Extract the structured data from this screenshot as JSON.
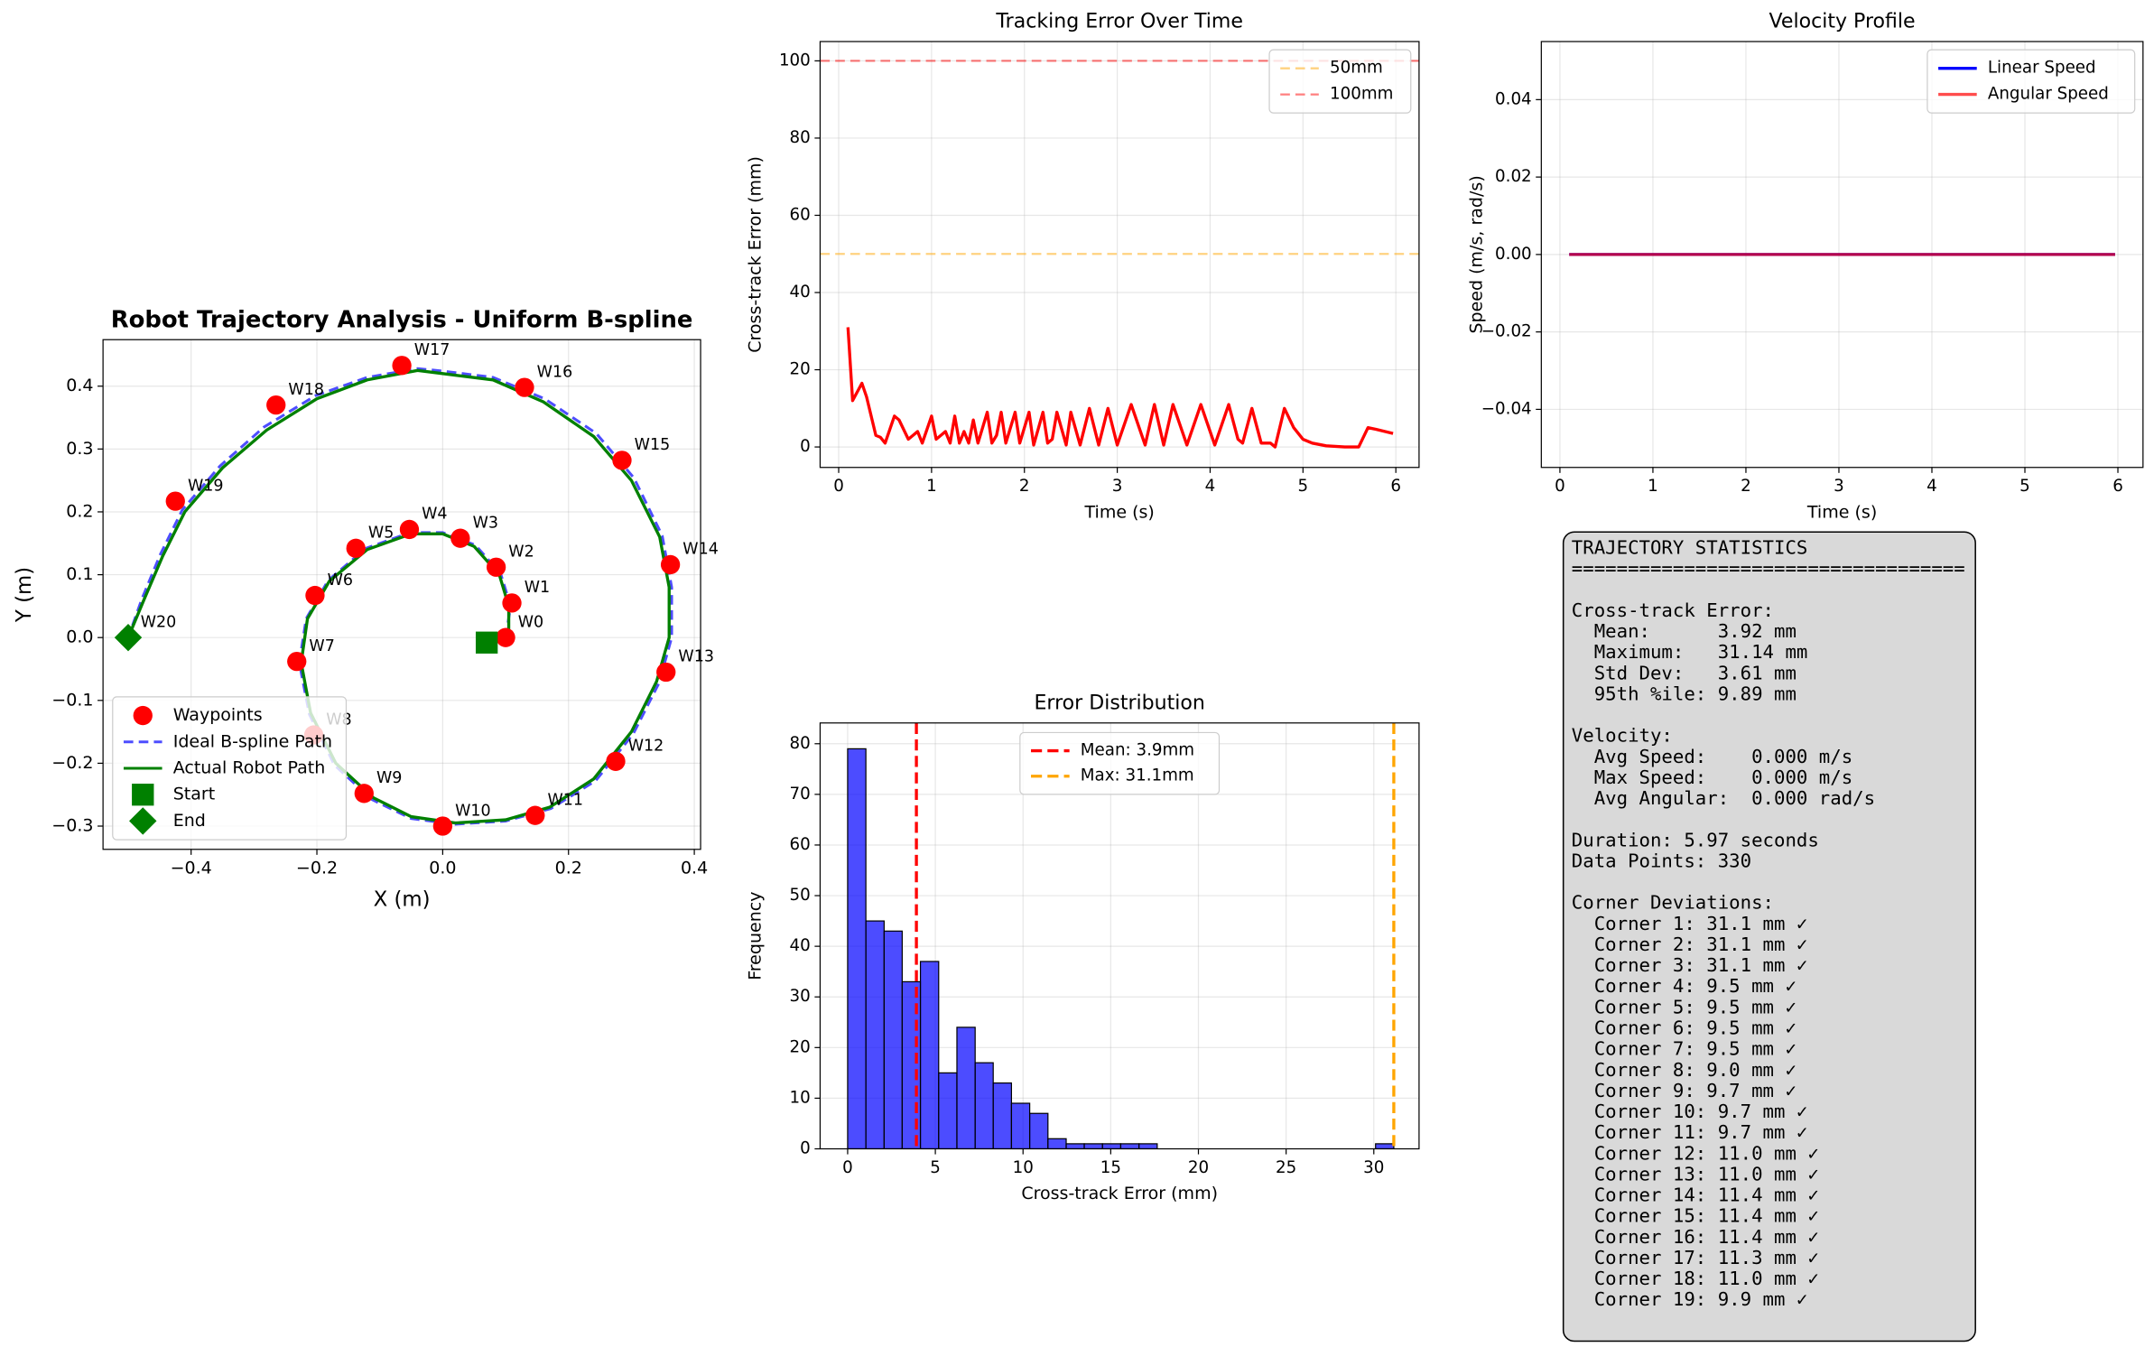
{
  "chart_data": [
    {
      "type": "scatter",
      "title": "Robot Trajectory Analysis - Uniform B-spline",
      "xlabel": "X (m)",
      "ylabel": "Y (m)",
      "xlim": [
        -0.54,
        0.41
      ],
      "ylim": [
        -0.337,
        0.474
      ],
      "xticks": [
        {
          "value": -0.4,
          "label": "−0.4"
        },
        {
          "value": -0.2,
          "label": "−0.2"
        },
        {
          "value": 0,
          "label": "0.0"
        },
        {
          "value": 0.2,
          "label": "0.2"
        },
        {
          "value": 0.4,
          "label": "0.4"
        }
      ],
      "yticks": [
        {
          "value": -0.3,
          "label": "−0.3"
        },
        {
          "value": -0.2,
          "label": "−0.2"
        },
        {
          "value": -0.1,
          "label": "−0.1"
        },
        {
          "value": 0,
          "label": "0.0"
        },
        {
          "value": 0.1,
          "label": "0.1"
        },
        {
          "value": 0.2,
          "label": "0.2"
        },
        {
          "value": 0.3,
          "label": "0.3"
        },
        {
          "value": 0.4,
          "label": "0.4"
        }
      ],
      "grid": true,
      "legend": "lower left",
      "series": [
        {
          "name": "Ideal B-spline Path",
          "kind": "line",
          "color": "#4d4dff",
          "linestyle": "dashed",
          "x": [
            0.1,
            0.108,
            0.092,
            0.052,
            0.0,
            -0.052,
            -0.122,
            -0.182,
            -0.217,
            -0.228,
            -0.212,
            -0.172,
            -0.112,
            -0.05,
            0.02,
            0.1,
            0.172,
            0.243,
            0.303,
            0.344,
            0.364,
            0.364,
            0.349,
            0.304,
            0.244,
            0.162,
            0.08,
            0.0,
            -0.04,
            -0.12,
            -0.202,
            -0.284,
            -0.354,
            -0.414,
            -0.449,
            -0.478,
            -0.5
          ],
          "y": [
            0.0,
            0.05,
            0.102,
            0.147,
            0.167,
            0.167,
            0.142,
            0.091,
            0.03,
            -0.04,
            -0.122,
            -0.203,
            -0.258,
            -0.288,
            -0.297,
            -0.292,
            -0.272,
            -0.228,
            -0.153,
            -0.072,
            0.0,
            0.08,
            0.162,
            0.254,
            0.325,
            0.38,
            0.414,
            0.424,
            0.428,
            0.414,
            0.385,
            0.335,
            0.273,
            0.203,
            0.132,
            0.062,
            0.0
          ]
        },
        {
          "name": "Actual Robot Path",
          "kind": "line",
          "color": "#008000",
          "linestyle": "solid",
          "x": [
            0.105,
            0.105,
            0.09,
            0.05,
            0.0,
            -0.05,
            -0.12,
            -0.18,
            -0.215,
            -0.225,
            -0.21,
            -0.17,
            -0.11,
            -0.05,
            0.02,
            0.1,
            0.17,
            0.24,
            0.3,
            0.34,
            0.36,
            0.36,
            0.345,
            0.3,
            0.24,
            0.16,
            0.08,
            0.0,
            -0.04,
            -0.12,
            -0.2,
            -0.28,
            -0.35,
            -0.41,
            -0.445,
            -0.475,
            -0.5
          ],
          "y": [
            0.0,
            0.05,
            0.1,
            0.145,
            0.165,
            0.165,
            0.14,
            0.09,
            0.03,
            -0.04,
            -0.12,
            -0.2,
            -0.255,
            -0.285,
            -0.295,
            -0.29,
            -0.27,
            -0.225,
            -0.15,
            -0.07,
            0.0,
            0.08,
            0.16,
            0.25,
            0.32,
            0.375,
            0.41,
            0.42,
            0.425,
            0.41,
            0.38,
            0.33,
            0.27,
            0.2,
            0.13,
            0.06,
            0.0
          ]
        },
        {
          "name": "Waypoints",
          "kind": "points",
          "marker": "circle",
          "color": "#ff0000",
          "x": [
            0.1,
            0.11,
            0.085,
            0.028,
            -0.053,
            -0.138,
            -0.203,
            -0.232,
            -0.205,
            -0.125,
            0.0,
            0.147,
            0.275,
            0.355,
            0.362,
            0.285,
            0.13,
            -0.065,
            -0.265,
            -0.425,
            -0.5
          ],
          "y": [
            0.0,
            0.055,
            0.112,
            0.158,
            0.172,
            0.142,
            0.067,
            -0.038,
            -0.155,
            -0.248,
            -0.3,
            -0.283,
            -0.197,
            -0.055,
            0.116,
            0.282,
            0.398,
            0.433,
            0.37,
            0.217,
            0.0
          ],
          "labels": [
            "W0",
            "W1",
            "W2",
            "W3",
            "W4",
            "W5",
            "W6",
            "W7",
            "W8",
            "W9",
            "W10",
            "W11",
            "W12",
            "W13",
            "W14",
            "W15",
            "W16",
            "W17",
            "W18",
            "W19",
            "W20"
          ]
        },
        {
          "name": "Start",
          "kind": "points",
          "marker": "square",
          "color": "#008000",
          "x": [
            0.07
          ],
          "y": [
            -0.008
          ]
        },
        {
          "name": "End",
          "kind": "points",
          "marker": "diamond",
          "color": "#008000",
          "x": [
            -0.5
          ],
          "y": [
            0.0
          ]
        }
      ],
      "legend_order": [
        2,
        0,
        1,
        3,
        4
      ]
    },
    {
      "type": "line",
      "title": "Tracking Error Over Time",
      "xlabel": "Time (s)",
      "ylabel": "Cross-track Error (mm)",
      "xlim": [
        -0.2,
        6.25
      ],
      "ylim": [
        -5.3,
        105
      ],
      "xticks": [
        0,
        1,
        2,
        3,
        4,
        5,
        6
      ],
      "yticks": [
        0,
        20,
        40,
        60,
        80,
        100
      ],
      "grid": true,
      "legend": "upper right",
      "color": "#ff0000",
      "x": [
        0.1,
        0.15,
        0.25,
        0.3,
        0.4,
        0.45,
        0.5,
        0.6,
        0.65,
        0.75,
        0.8,
        0.85,
        0.9,
        1.0,
        1.05,
        1.1,
        1.15,
        1.2,
        1.25,
        1.3,
        1.35,
        1.4,
        1.45,
        1.5,
        1.6,
        1.65,
        1.7,
        1.75,
        1.8,
        1.9,
        1.95,
        2.05,
        2.1,
        2.2,
        2.25,
        2.3,
        2.35,
        2.45,
        2.5,
        2.6,
        2.7,
        2.8,
        2.9,
        3.0,
        3.15,
        3.3,
        3.4,
        3.5,
        3.6,
        3.75,
        3.9,
        4.05,
        4.2,
        4.3,
        4.35,
        4.45,
        4.55,
        4.65,
        4.7,
        4.8,
        4.9,
        5.0,
        5.1,
        5.25,
        5.45,
        5.6,
        5.7,
        5.8,
        5.97
      ],
      "values": [
        31,
        12,
        16.5,
        13,
        3,
        2.5,
        1,
        8,
        7,
        2,
        3,
        4,
        1,
        8,
        2,
        3,
        4,
        1,
        8,
        1,
        4,
        1,
        7,
        1,
        9,
        1,
        3,
        9,
        1,
        9,
        1,
        9,
        0.5,
        9,
        1,
        2,
        9,
        0.5,
        9,
        0.5,
        10,
        0.5,
        10,
        0.5,
        11,
        0.5,
        11,
        0.5,
        11,
        0.5,
        11,
        0.5,
        11,
        2,
        1,
        10,
        1,
        1,
        0,
        10,
        5,
        2,
        1,
        0.3,
        0,
        0,
        5,
        4.5,
        3.5
      ],
      "reference_lines": [
        {
          "value": 50,
          "label": "50mm",
          "color": "#ffa500",
          "alpha": 0.5
        },
        {
          "value": 100,
          "label": "100mm",
          "color": "#ff0000",
          "alpha": 0.5
        }
      ]
    },
    {
      "type": "line",
      "title": "Velocity Profile",
      "xlabel": "Time (s)",
      "ylabel": "Speed (m/s, rad/s)",
      "xlim": [
        -0.2,
        6.27
      ],
      "ylim": [
        -0.055,
        0.055
      ],
      "xticks": [
        0,
        1,
        2,
        3,
        4,
        5,
        6
      ],
      "yticks": [
        {
          "value": -0.04,
          "label": "−0.04"
        },
        {
          "value": -0.02,
          "label": "−0.02"
        },
        {
          "value": 0,
          "label": "0.00"
        },
        {
          "value": 0.02,
          "label": "0.02"
        },
        {
          "value": 0.04,
          "label": "0.04"
        }
      ],
      "grid": true,
      "legend": "upper right",
      "series": [
        {
          "name": "Linear Speed",
          "color": "#0000ff",
          "alpha": 1,
          "x": [
            0.1,
            5.97
          ],
          "values": [
            0,
            0
          ]
        },
        {
          "name": "Angular Speed",
          "color": "#ff0000",
          "alpha": 0.7,
          "x": [
            0.1,
            5.97
          ],
          "values": [
            0,
            0
          ]
        }
      ]
    },
    {
      "type": "histogram",
      "title": "Error Distribution",
      "xlabel": "Cross-track Error (mm)",
      "ylabel": "Frequency",
      "xlim": [
        -1.57,
        32.58
      ],
      "ylim": [
        0,
        84.1
      ],
      "xticks": [
        0,
        5,
        10,
        15,
        20,
        25,
        30
      ],
      "yticks": [
        0,
        10,
        20,
        30,
        40,
        50,
        60,
        70,
        80
      ],
      "grid": true,
      "legend": "upper center",
      "color": "#0000ff",
      "alpha": 0.7,
      "edgecolor": "#000000",
      "bins": [
        0,
        1.04,
        2.08,
        3.11,
        4.15,
        5.19,
        6.23,
        7.27,
        8.3,
        9.34,
        10.38,
        11.42,
        12.46,
        13.49,
        14.53,
        15.57,
        16.61,
        17.65,
        18.68,
        19.72,
        20.76,
        21.8,
        22.84,
        23.87,
        24.91,
        25.95,
        26.99,
        28.03,
        29.06,
        30.1,
        31.14
      ],
      "counts": [
        79,
        45,
        43,
        33,
        37,
        15,
        24,
        17,
        13,
        9,
        7,
        2,
        1,
        1,
        1,
        1,
        1,
        0,
        0,
        0,
        0,
        0,
        0,
        0,
        0,
        0,
        0,
        0,
        0,
        1
      ],
      "reference_lines": [
        {
          "value": 3.92,
          "label": "Mean: 3.9mm",
          "color": "#ff0000",
          "alpha": 1
        },
        {
          "value": 31.14,
          "label": "Max: 31.1mm",
          "color": "#ffa500",
          "alpha": 1
        }
      ]
    }
  ],
  "stats_box": {
    "title": "TRAJECTORY STATISTICS",
    "rule": "===================================",
    "sections": [
      [
        "Cross-track Error:",
        "  Mean:      3.92 mm",
        "  Maximum:   31.14 mm",
        "  Std Dev:   3.61 mm",
        "  95th %ile: 9.89 mm"
      ],
      [
        "Velocity:",
        "  Avg Speed:    0.000 m/s",
        "  Max Speed:    0.000 m/s",
        "  Avg Angular:  0.000 rad/s"
      ],
      [
        "Duration: 5.97 seconds",
        "Data Points: 330"
      ],
      [
        "Corner Deviations:",
        "  Corner 1: 31.1 mm ✓",
        "  Corner 2: 31.1 mm ✓",
        "  Corner 3: 31.1 mm ✓",
        "  Corner 4: 9.5 mm ✓",
        "  Corner 5: 9.5 mm ✓",
        "  Corner 6: 9.5 mm ✓",
        "  Corner 7: 9.5 mm ✓",
        "  Corner 8: 9.0 mm ✓",
        "  Corner 9: 9.7 mm ✓",
        "  Corner 10: 9.7 mm ✓",
        "  Corner 11: 9.7 mm ✓",
        "  Corner 12: 11.0 mm ✓",
        "  Corner 13: 11.0 mm ✓",
        "  Corner 14: 11.4 mm ✓",
        "  Corner 15: 11.4 mm ✓",
        "  Corner 16: 11.4 mm ✓",
        "  Corner 17: 11.3 mm ✓",
        "  Corner 18: 11.0 mm ✓",
        "  Corner 19: 9.9 mm ✓"
      ]
    ]
  }
}
